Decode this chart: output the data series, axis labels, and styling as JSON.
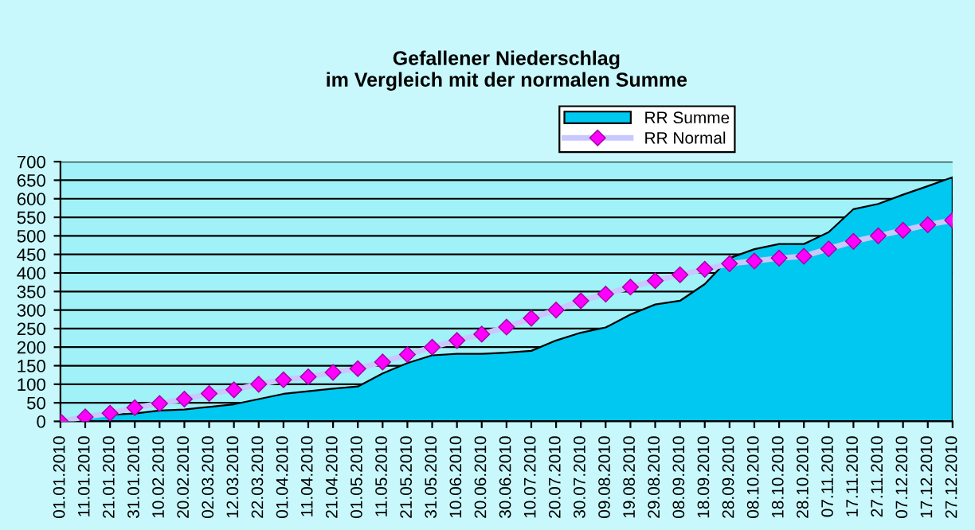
{
  "chart_data": {
    "type": "area",
    "title": "Gefallener Niederschlag\nim Vergleich mit der normalen Summe",
    "x": [
      "2010-01-01",
      "2010-01-11",
      "2010-01-21",
      "2010-01-31",
      "2010-02-10",
      "2010-02-20",
      "2010-03-02",
      "2010-03-12",
      "2010-03-22",
      "2010-04-01",
      "2010-04-11",
      "2010-04-21",
      "2010-05-01",
      "2010-05-11",
      "2010-05-21",
      "2010-05-31",
      "2010-06-10",
      "2010-06-20",
      "2010-06-30",
      "2010-07-10",
      "2010-07-20",
      "2010-07-30",
      "2010-08-09",
      "2010-08-19",
      "2010-08-29",
      "2010-09-08",
      "2010-09-18",
      "2010-09-28",
      "2010-10-08",
      "2010-10-18",
      "2010-10-28",
      "2010-11-07",
      "2010-11-17",
      "2010-11-27",
      "2010-12-07",
      "2010-12-17",
      "2010-12-27"
    ],
    "series": [
      {
        "name": "RR Summe",
        "color": "#00c8f0",
        "values": [
          0,
          11,
          18,
          21,
          29,
          32,
          39,
          46,
          60,
          74,
          81,
          88,
          94,
          129,
          157,
          178,
          182,
          182,
          185,
          190,
          218,
          239,
          253,
          288,
          315,
          325,
          370,
          440,
          464,
          478,
          478,
          510,
          572,
          586,
          611,
          634,
          658
        ]
      },
      {
        "name": "RR Normal",
        "type": "line",
        "color": "#ff00ff",
        "marker": "diamond",
        "values": [
          0,
          12,
          22,
          37,
          48,
          60,
          75,
          85,
          100,
          112,
          120,
          132,
          142,
          160,
          180,
          200,
          218,
          235,
          254,
          278,
          300,
          325,
          343,
          362,
          379,
          395,
          410,
          425,
          432,
          440,
          445,
          465,
          485,
          500,
          515,
          530,
          542
        ]
      }
    ],
    "xlim": [
      "2010-01-01",
      "2010-12-27"
    ],
    "xticks": [
      {
        "value": "2010-01-01",
        "label": "01.01.2010"
      },
      {
        "value": "2010-01-11",
        "label": "11.01.2010"
      },
      {
        "value": "2010-01-21",
        "label": "21.01.2010"
      },
      {
        "value": "2010-01-31",
        "label": "31.01.2010"
      },
      {
        "value": "2010-02-10",
        "label": "10.02.2010"
      },
      {
        "value": "2010-02-20",
        "label": "20.02.2010"
      },
      {
        "value": "2010-03-02",
        "label": "02.03.2010"
      },
      {
        "value": "2010-03-12",
        "label": "12.03.2010"
      },
      {
        "value": "2010-03-22",
        "label": "22.03.2010"
      },
      {
        "value": "2010-04-01",
        "label": "01.04.2010"
      },
      {
        "value": "2010-04-11",
        "label": "11.04.2010"
      },
      {
        "value": "2010-04-21",
        "label": "21.04.2010"
      },
      {
        "value": "2010-05-01",
        "label": "01.05.2010"
      },
      {
        "value": "2010-05-11",
        "label": "11.05.2010"
      },
      {
        "value": "2010-05-21",
        "label": "21.05.2010"
      },
      {
        "value": "2010-05-31",
        "label": "31.05.2010"
      },
      {
        "value": "2010-06-10",
        "label": "10.06.2010"
      },
      {
        "value": "2010-06-20",
        "label": "20.06.2010"
      },
      {
        "value": "2010-06-30",
        "label": "30.06.2010"
      },
      {
        "value": "2010-07-10",
        "label": "10.07.2010"
      },
      {
        "value": "2010-07-20",
        "label": "20.07.2010"
      },
      {
        "value": "2010-07-30",
        "label": "30.07.2010"
      },
      {
        "value": "2010-08-09",
        "label": "09.08.2010"
      },
      {
        "value": "2010-08-19",
        "label": "19.08.2010"
      },
      {
        "value": "2010-08-29",
        "label": "29.08.2010"
      },
      {
        "value": "2010-09-08",
        "label": "08.09.2010"
      },
      {
        "value": "2010-09-18",
        "label": "18.09.2010"
      },
      {
        "value": "2010-09-28",
        "label": "28.09.2010"
      },
      {
        "value": "2010-10-08",
        "label": "08.10.2010"
      },
      {
        "value": "2010-10-18",
        "label": "18.10.2010"
      },
      {
        "value": "2010-10-28",
        "label": "28.10.2010"
      },
      {
        "value": "2010-11-07",
        "label": "07.11.2010"
      },
      {
        "value": "2010-11-17",
        "label": "17.11.2010"
      },
      {
        "value": "2010-11-27",
        "label": "27.11.2010"
      },
      {
        "value": "2010-12-07",
        "label": "07.12.2010"
      },
      {
        "value": "2010-12-17",
        "label": "17.12.2010"
      },
      {
        "value": "2010-12-27",
        "label": "27.12.2010"
      }
    ],
    "ylim": [
      0,
      700
    ],
    "yticks": [
      0,
      50,
      100,
      150,
      200,
      250,
      300,
      350,
      400,
      450,
      500,
      550,
      600,
      650,
      700
    ],
    "grid": "y",
    "legend": "top right"
  }
}
